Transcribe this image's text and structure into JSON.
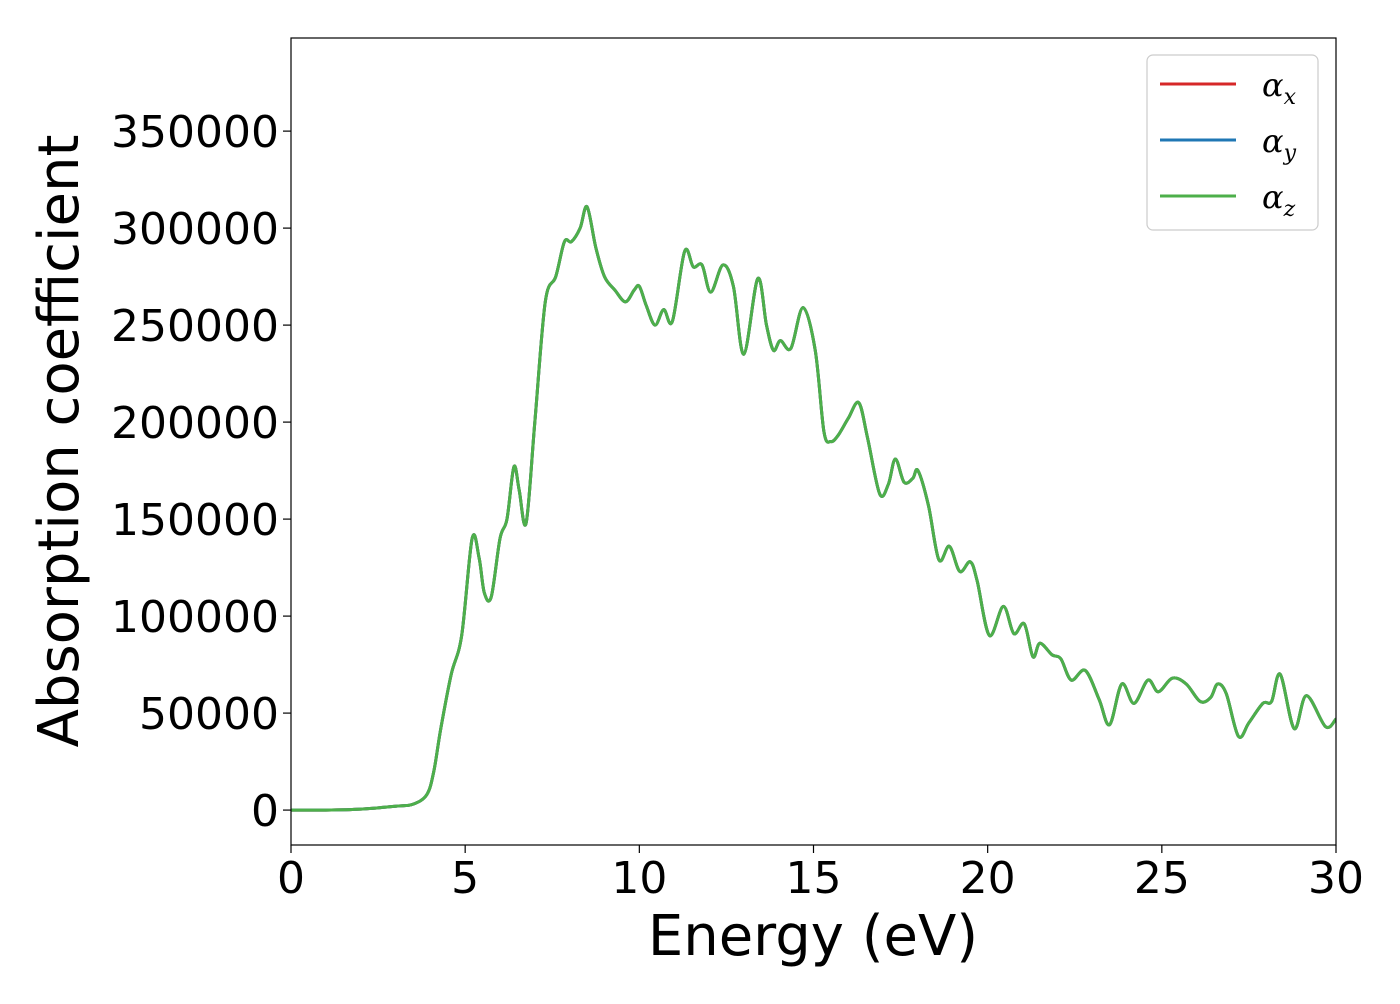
{
  "chart_data": {
    "type": "line",
    "title": "",
    "xlabel": "Energy (eV)",
    "ylabel": "Absorption coefficient",
    "xlim": [
      0,
      30
    ],
    "ylim": [
      -18000,
      398000
    ],
    "xticks": [
      "0",
      "5",
      "10",
      "15",
      "20",
      "25",
      "30"
    ],
    "yticks": [
      "0",
      "50000",
      "100000",
      "150000",
      "200000",
      "250000",
      "300000",
      "350000"
    ],
    "xtick_values": [
      0,
      5,
      10,
      15,
      20,
      25,
      30
    ],
    "ytick_values": [
      0,
      50000,
      100000,
      150000,
      200000,
      250000,
      300000,
      350000
    ],
    "grid": false,
    "legend_position": "top-right",
    "series": [
      {
        "name": "α",
        "subscript": "x",
        "color": "#d62728"
      },
      {
        "name": "α",
        "subscript": "y",
        "color": "#1f77b4"
      },
      {
        "name": "α",
        "subscript": "z",
        "color": "#4daf4a"
      }
    ],
    "x": [
      0,
      1,
      2,
      3,
      3.5,
      3.9,
      4.1,
      4.3,
      4.6,
      4.9,
      5.2,
      5.4,
      5.55,
      5.75,
      6.0,
      6.2,
      6.4,
      6.55,
      6.75,
      7.0,
      7.3,
      7.6,
      7.85,
      8.05,
      8.3,
      8.5,
      8.75,
      9.0,
      9.3,
      9.6,
      9.85,
      10.0,
      10.2,
      10.45,
      10.7,
      10.95,
      11.3,
      11.55,
      11.8,
      12.05,
      12.4,
      12.7,
      13.0,
      13.4,
      13.65,
      13.85,
      14.05,
      14.35,
      14.7,
      15.05,
      15.3,
      15.5,
      15.7,
      16.0,
      16.3,
      16.55,
      16.9,
      17.15,
      17.35,
      17.6,
      17.85,
      18.0,
      18.3,
      18.6,
      18.9,
      19.2,
      19.5,
      19.7,
      20.05,
      20.45,
      20.75,
      21.05,
      21.3,
      21.5,
      21.85,
      22.1,
      22.4,
      22.8,
      23.2,
      23.5,
      23.85,
      24.2,
      24.6,
      24.9,
      25.3,
      25.7,
      26.1,
      26.4,
      26.6,
      26.85,
      27.2,
      27.5,
      27.9,
      28.15,
      28.4,
      28.8,
      29.15,
      29.7,
      30.0
    ],
    "y": [
      0,
      0,
      500,
      2000,
      3000,
      8000,
      20000,
      42000,
      70000,
      90000,
      140000,
      130000,
      112000,
      110000,
      140000,
      150000,
      177000,
      165000,
      148000,
      200000,
      262000,
      275000,
      293000,
      293000,
      300000,
      311000,
      290000,
      275000,
      268000,
      262000,
      268000,
      270000,
      260000,
      250000,
      258000,
      252000,
      288000,
      280000,
      281000,
      267000,
      281000,
      270000,
      235000,
      274000,
      250000,
      237000,
      242000,
      238000,
      259000,
      237000,
      195000,
      190000,
      193000,
      202000,
      210000,
      192000,
      163000,
      168000,
      181000,
      169000,
      171000,
      175000,
      157000,
      129000,
      136000,
      123000,
      128000,
      118000,
      90000,
      105000,
      91000,
      96000,
      79000,
      86000,
      80000,
      78000,
      67000,
      72000,
      57000,
      44000,
      65000,
      55000,
      67000,
      61000,
      68000,
      65000,
      56000,
      58000,
      65000,
      60000,
      38000,
      45000,
      55000,
      56000,
      70000,
      42000,
      59000,
      43000,
      47000
    ]
  }
}
